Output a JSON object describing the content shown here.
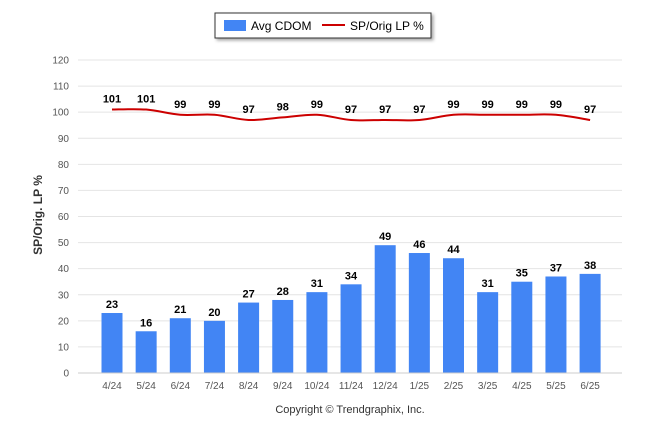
{
  "chart_data": {
    "type": "bar",
    "categories": [
      "4/24",
      "5/24",
      "6/24",
      "7/24",
      "8/24",
      "9/24",
      "10/24",
      "11/24",
      "12/24",
      "1/25",
      "2/25",
      "3/25",
      "4/25",
      "5/25",
      "6/25"
    ],
    "series": [
      {
        "name": "Avg CDOM",
        "type": "bar",
        "color": "#4285f4",
        "values": [
          23,
          16,
          21,
          20,
          27,
          28,
          31,
          34,
          49,
          46,
          44,
          31,
          35,
          37,
          38
        ]
      },
      {
        "name": "SP/Orig LP %",
        "type": "line",
        "color": "#cc0000",
        "values": [
          101,
          101,
          99,
          99,
          97,
          98,
          99,
          97,
          97,
          97,
          99,
          99,
          99,
          99,
          97
        ]
      }
    ],
    "title": "",
    "xlabel": "",
    "ylabel": "SP/Orig. LP %",
    "ylim": [
      0,
      120
    ],
    "yticks": [
      0,
      10,
      20,
      30,
      40,
      50,
      60,
      70,
      80,
      90,
      100,
      110,
      120
    ],
    "grid": true,
    "legend_position": "top-center"
  },
  "footer": {
    "copyright": "Copyright © Trendgraphix, Inc."
  }
}
